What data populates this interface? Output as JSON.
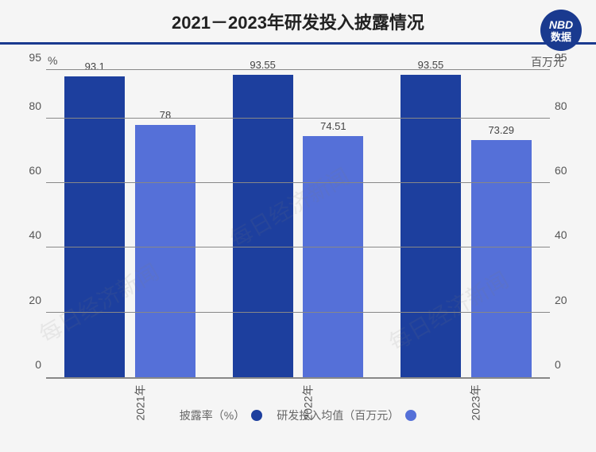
{
  "header": {
    "title": "2021－2023年研发投入披露情况",
    "logo_top": "NBD",
    "logo_bottom": "数据"
  },
  "chart": {
    "type": "bar",
    "left_axis": {
      "label": "%",
      "min": 0,
      "max": 95,
      "ticks": [
        0,
        20,
        40,
        60,
        80,
        95
      ]
    },
    "right_axis": {
      "label": "百万元",
      "min": 0,
      "max": 95,
      "ticks": [
        0,
        20,
        40,
        60,
        80,
        95
      ]
    },
    "categories": [
      "2021年",
      "2022年",
      "2023年"
    ],
    "series": [
      {
        "name": "披露率（%）",
        "color": "#1d3f9e",
        "axis": "left",
        "values": [
          93.1,
          93.55,
          93.55
        ],
        "labels": [
          "93.1",
          "93.55",
          "93.55"
        ]
      },
      {
        "name": "研发投入均值（百万元）",
        "color": "#5570d8",
        "axis": "right",
        "values": [
          78,
          74.51,
          73.29
        ],
        "labels": [
          "78",
          "74.51",
          "73.29"
        ]
      }
    ],
    "grid_color": "#888888",
    "background_color": "#f5f5f5",
    "bar_width_pct": 12,
    "group_gap_pct": 2,
    "title_fontsize": 22,
    "label_fontsize": 14,
    "value_label_fontsize": 13
  },
  "legend": {
    "items": [
      {
        "label": "披露率（%）",
        "color": "#1d3f9e"
      },
      {
        "label": "研发投入均值（百万元）",
        "color": "#5570d8"
      }
    ]
  },
  "watermark": "每日经济新闻"
}
